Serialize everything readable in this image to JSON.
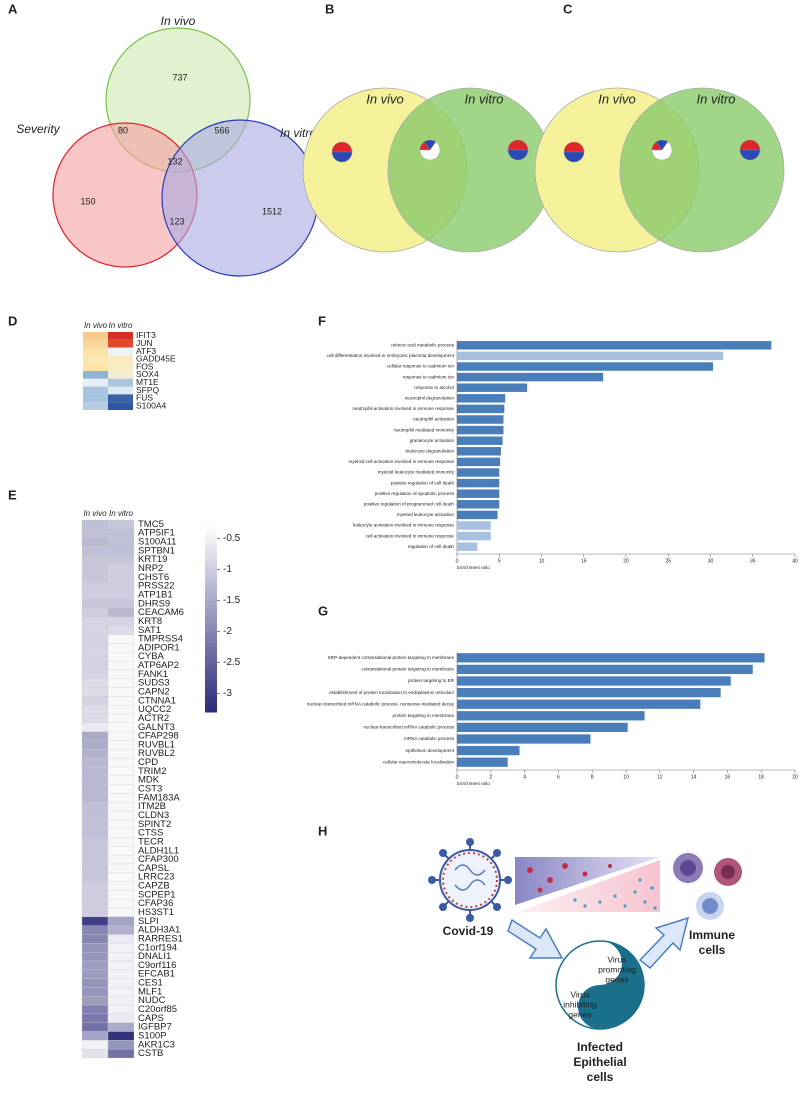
{
  "panel_labels": [
    "A",
    "B",
    "C",
    "D",
    "E",
    "F",
    "G",
    "H"
  ],
  "venn_a": {
    "sets": [
      "In vivo",
      "Severity",
      "In vitro"
    ],
    "colors": [
      "#7dc04a",
      "#d9242a",
      "#2b3bb5"
    ],
    "fills": [
      "#cfe8b0",
      "#f3a0a0",
      "#a8a8e2"
    ],
    "regions": [
      737,
      80,
      566,
      132,
      150,
      123,
      1512
    ]
  },
  "venn_b": {
    "sets": [
      "In vivo",
      "In vitro"
    ],
    "fills": [
      "#f5f19a",
      "#8acb6a"
    ],
    "pie_colors": [
      "#e0262a",
      "#2b49b5",
      "#ffffff"
    ],
    "pies": [
      [
        50,
        50
      ],
      [
        15,
        20,
        65
      ],
      [
        50,
        50
      ]
    ]
  },
  "venn_c": {
    "sets": [
      "In vivo",
      "In vitro"
    ],
    "fills": [
      "#f5f19a",
      "#8acb6a"
    ],
    "pie_colors": [
      "#e0262a",
      "#2b49b5",
      "#ffffff"
    ],
    "pies": [
      [
        50,
        50
      ],
      [
        15,
        20,
        65
      ],
      [
        50,
        50
      ]
    ]
  },
  "heatmap_d": {
    "columns": [
      "In vivo",
      "In vitro"
    ],
    "rows": [
      "IFIT3",
      "JUN",
      "ATF3",
      "GADD45E",
      "FOS",
      "SOX4",
      "MT1E",
      "SFPQ",
      "FUS",
      "S100A4"
    ],
    "colors": [
      [
        "#f6c98a",
        "#d73027"
      ],
      [
        "#f8d59b",
        "#e04a2f"
      ],
      [
        "#fbe3a8",
        "#eef3f5"
      ],
      [
        "#fde7b0",
        "#f9eac1"
      ],
      [
        "#fce2a6",
        "#fcecc3"
      ],
      [
        "#8fb5d6",
        "#f2eed3"
      ],
      [
        "#e8eef3",
        "#aac6de"
      ],
      [
        "#a8c4de",
        "#dde9ef"
      ],
      [
        "#a7c3dd",
        "#3a62a6"
      ],
      [
        "#b5cde2",
        "#2e55a0"
      ]
    ]
  },
  "heatmap_e": {
    "columns": [
      "In vivo",
      "In vitro"
    ],
    "rows": [
      "TMC5",
      "ATP5IF1",
      "S100A11",
      "SPTBN1",
      "KRT19",
      "NRP2",
      "CHST6",
      "PRSS22",
      "ATP1B1",
      "DHRS9",
      "CEACAM6",
      "KRT8",
      "SAT1",
      "TMPRSS4",
      "ADIPOR1",
      "CYBA",
      "ATP6AP2",
      "FANK1",
      "SUDS3",
      "CAPN2",
      "CTNNA1",
      "UQCC2",
      "ACTR2",
      "GALNT3",
      "CFAP298",
      "RUVBL1",
      "RUVBL2",
      "CPD",
      "TRIM2",
      "MDK",
      "CST3",
      "FAM183A",
      "ITM2B",
      "CLDN3",
      "SPINT2",
      "CTSS",
      "TECR",
      "ALDH1L1",
      "CFAP300",
      "CAPSL",
      "LRRC23",
      "CAPZB",
      "SCPEP1",
      "CFAP36",
      "HS3ST1",
      "SLPI",
      "ALDH3A1",
      "RARRES1",
      "C1orf194",
      "DNALI1",
      "C9orf116",
      "EFCAB1",
      "CES1",
      "MLF1",
      "NUDC",
      "C20orf85",
      "CAPS",
      "IGFBP7",
      "S100P",
      "AKR1C3",
      "CSTB"
    ],
    "values": [
      [
        -1.2,
        -1.1
      ],
      [
        -1.2,
        -1.2
      ],
      [
        -1.3,
        -1.2
      ],
      [
        -1.2,
        -1.2
      ],
      [
        -1.1,
        -1.1
      ],
      [
        -1.1,
        -1.0
      ],
      [
        -1.1,
        -1.0
      ],
      [
        -1.0,
        -1.0
      ],
      [
        -1.0,
        -1.0
      ],
      [
        -1.1,
        -1.1
      ],
      [
        -1.0,
        -1.3
      ],
      [
        -0.9,
        -0.9
      ],
      [
        -0.9,
        -0.8
      ],
      [
        -0.9,
        -0.4
      ],
      [
        -0.9,
        -0.4
      ],
      [
        -0.9,
        -0.4
      ],
      [
        -0.9,
        -0.4
      ],
      [
        -0.9,
        -0.4
      ],
      [
        -0.8,
        -0.4
      ],
      [
        -0.8,
        -0.4
      ],
      [
        -0.9,
        -0.4
      ],
      [
        -0.8,
        -0.4
      ],
      [
        -0.8,
        -0.4
      ],
      [
        -0.6,
        -0.4
      ],
      [
        -1.5,
        -0.4
      ],
      [
        -1.5,
        -0.4
      ],
      [
        -1.4,
        -0.4
      ],
      [
        -1.3,
        -0.4
      ],
      [
        -1.3,
        -0.4
      ],
      [
        -1.3,
        -0.4
      ],
      [
        -1.3,
        -0.4
      ],
      [
        -1.3,
        -0.4
      ],
      [
        -1.2,
        -0.4
      ],
      [
        -1.2,
        -0.4
      ],
      [
        -1.2,
        -0.4
      ],
      [
        -1.2,
        -0.4
      ],
      [
        -1.1,
        -0.4
      ],
      [
        -1.1,
        -0.4
      ],
      [
        -1.1,
        -0.4
      ],
      [
        -1.1,
        -0.4
      ],
      [
        -1.1,
        -0.4
      ],
      [
        -1.0,
        -0.4
      ],
      [
        -1.0,
        -0.4
      ],
      [
        -1.0,
        -0.4
      ],
      [
        -1.0,
        -0.4
      ],
      [
        -3.0,
        -1.6
      ],
      [
        -2.0,
        -1.4
      ],
      [
        -2.0,
        -0.6
      ],
      [
        -1.8,
        -0.5
      ],
      [
        -1.8,
        -0.5
      ],
      [
        -1.7,
        -0.5
      ],
      [
        -1.7,
        -0.5
      ],
      [
        -1.8,
        -0.5
      ],
      [
        -1.8,
        -0.5
      ],
      [
        -1.7,
        -0.5
      ],
      [
        -2.1,
        -0.5
      ],
      [
        -2.2,
        -0.6
      ],
      [
        -2.3,
        -1.5
      ],
      [
        -1.6,
        -3.2
      ],
      [
        -0.5,
        -1.8
      ],
      [
        -0.7,
        -2.3
      ]
    ],
    "clim": [
      -3.3,
      -0.3
    ],
    "cticks": [
      -0.5,
      -1,
      -1.5,
      -2,
      -2.5,
      -3
    ],
    "cmap": [
      "#ffffff",
      "#2b2a78"
    ]
  },
  "chart_data": [
    {
      "type": "bar",
      "orientation": "horizontal",
      "x_label": "Enrichment ratio",
      "categories": [
        "retinoic acid metabolic process",
        "cell differentiation involved in embryonic placenta development",
        "cellular response to cadmium ion",
        "response to cadmium ion",
        "response to alcohol",
        "neutrophil degranulation",
        "neutrophil activation involved in immune response",
        "neutrophil activation",
        "neutrophil mediated immunity",
        "granulocyte activation",
        "leukocyte degranulation",
        "myeloid cell activation involved in immune response",
        "myeloid leukocyte mediated immunity",
        "positive regulation of cell death",
        "positive regulation of apoptotic process",
        "positive regulation of programmed cell death",
        "myeloid leukocyte activation",
        "leukocyte activation involved in immune response",
        "cell activation involved in immune response",
        "regulation of cell death"
      ],
      "values": [
        37.2,
        31.5,
        30.3,
        17.3,
        8.3,
        5.7,
        5.6,
        5.5,
        5.5,
        5.4,
        5.2,
        5.1,
        5.0,
        5.0,
        5.0,
        5.0,
        4.8,
        4.0,
        4.0,
        2.4
      ],
      "colors": [
        "#4a7ebb",
        "#a9c1e0",
        "#4a7ebb",
        "#4a7ebb",
        "#4a7ebb",
        "#4a7ebb",
        "#4a7ebb",
        "#4a7ebb",
        "#4a7ebb",
        "#4a7ebb",
        "#4a7ebb",
        "#4a7ebb",
        "#4a7ebb",
        "#4a7ebb",
        "#4a7ebb",
        "#4a7ebb",
        "#4a7ebb",
        "#a9c1e0",
        "#a9c1e0",
        "#a9c1e0"
      ],
      "xlim": [
        0,
        40
      ],
      "xticks": [
        0,
        5,
        10,
        15,
        20,
        25,
        30,
        35,
        40
      ]
    },
    {
      "type": "bar",
      "orientation": "horizontal",
      "x_label": "Enrichment ratio",
      "categories": [
        "SRP-dependent cotranslational protein targeting to membrane",
        "cotranslational protein targeting to membrane",
        "protein targeting to ER",
        "establishment of protein localization to endoplasmic reticulum",
        "nuclear-transcribed mRNA catabolic process, nonsense-mediated decay",
        "protein targeting to membrane",
        "nuclear-transcribed mRNA catabolic process",
        "mRNA catabolic process",
        "epithelium development",
        "cellular macromolecule localization"
      ],
      "values": [
        18.2,
        17.5,
        16.2,
        15.6,
        14.4,
        11.1,
        10.1,
        7.9,
        3.7,
        3.0
      ],
      "colors": [
        "#4a7ebb",
        "#4a7ebb",
        "#4a7ebb",
        "#4a7ebb",
        "#4a7ebb",
        "#4a7ebb",
        "#4a7ebb",
        "#4a7ebb",
        "#4a7ebb",
        "#4a7ebb"
      ],
      "xlim": [
        0,
        20
      ],
      "xticks": [
        0,
        2,
        4,
        6,
        8,
        10,
        12,
        14,
        16,
        18,
        20
      ]
    }
  ],
  "diagram_h": {
    "covid": "Covid-19",
    "immune": [
      "Immune",
      "cells"
    ],
    "promoting": [
      "Virus",
      "promoting",
      "genes"
    ],
    "inhibiting": [
      "Virus",
      "inhibiting",
      "genes"
    ],
    "infected": [
      "Infected",
      "Epithelial",
      "cells"
    ]
  }
}
